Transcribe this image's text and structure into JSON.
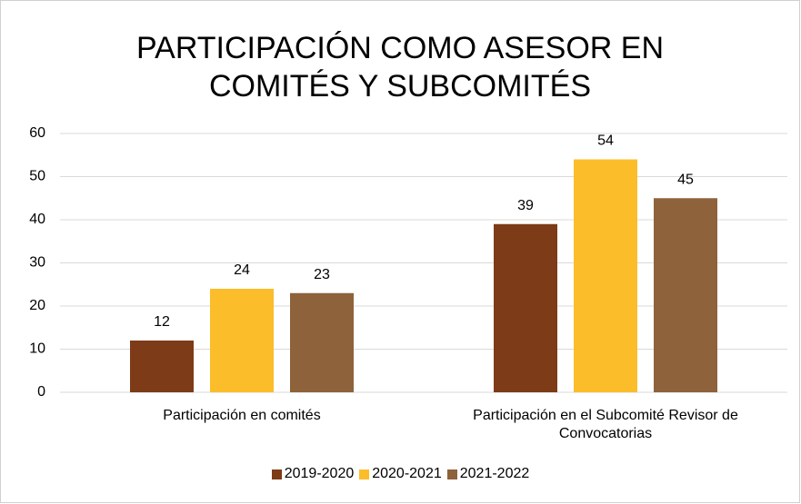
{
  "chart_data": {
    "type": "bar",
    "title": "PARTICIPACIÓN COMO ASESOR EN COMITÉS Y SUBCOMITÉS",
    "categories": [
      "Participación en comités",
      "Participación en el Subcomité Revisor de Convocatorias"
    ],
    "series": [
      {
        "name": "2019-2020",
        "color": "#7d3b17",
        "values": [
          12,
          39
        ]
      },
      {
        "name": "2020-2021",
        "color": "#fbbd2a",
        "values": [
          24,
          54
        ]
      },
      {
        "name": "2021-2022",
        "color": "#8e623a",
        "values": [
          23,
          45
        ]
      }
    ],
    "ylim": [
      0,
      60
    ],
    "yticks": [
      0,
      10,
      20,
      30,
      40,
      50,
      60
    ],
    "grid": true,
    "legend": "bottom"
  }
}
